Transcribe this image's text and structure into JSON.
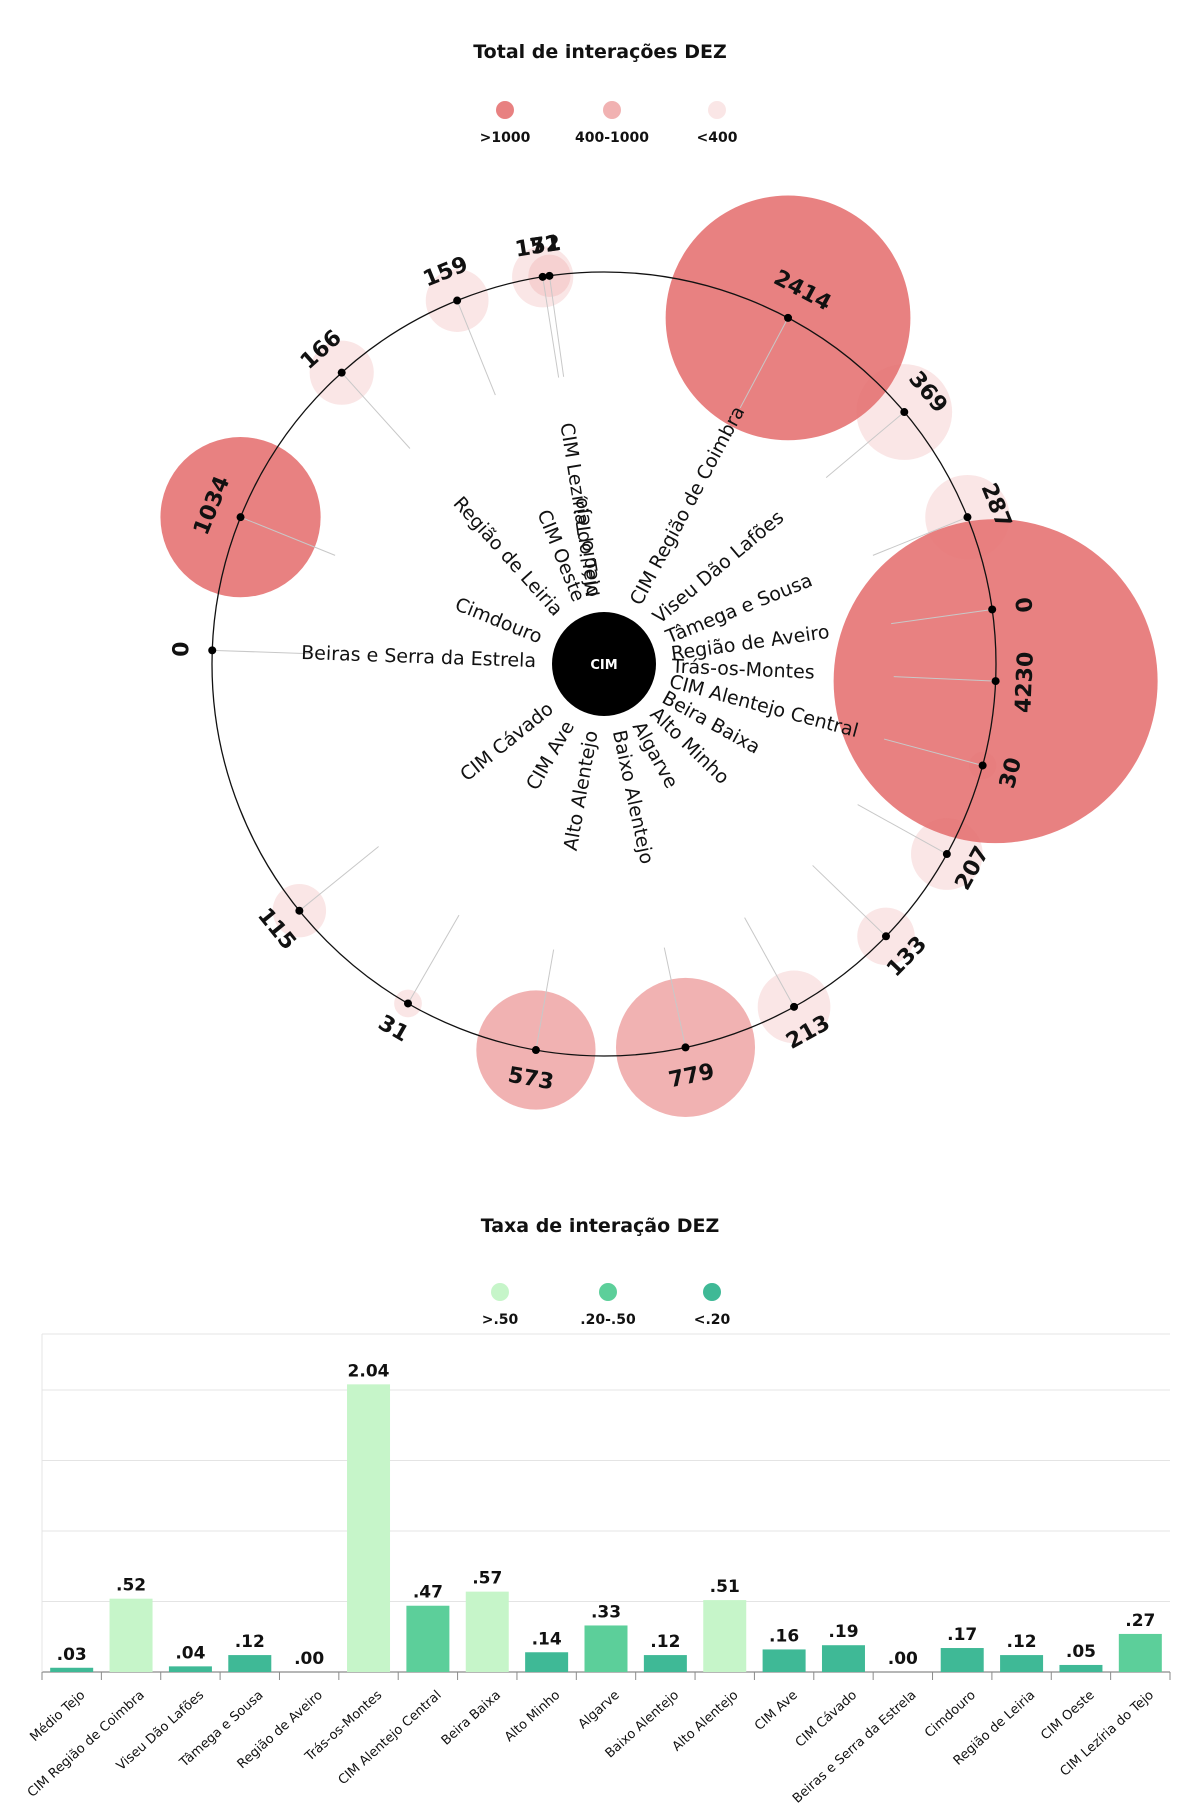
{
  "chart_data": [
    {
      "type": "radial-bubble",
      "title": "Total de interações DEZ",
      "center_label": "CIM",
      "legend": [
        {
          "label": ">1000",
          "color": "#e57373",
          "opacity": 0.9
        },
        {
          "label": "400-1000",
          "color": "#e57373",
          "opacity": 0.55
        },
        {
          "label": "<400",
          "color": "#e57373",
          "opacity": 0.18
        }
      ],
      "categories": [
        "Médio Tejo",
        "CIM Região de Coimbra",
        "Viseu Dão Lafões",
        "Tâmega e Sousa",
        "Região de Aveiro",
        "Trás-os-Montes",
        "CIM Alentejo Central",
        "Beira Baixa",
        "Alto Minho",
        "Algarve",
        "Baixo Alentejo",
        "Alto Alentejo",
        "CIM Ave",
        "CIM Cávado",
        "Beiras e Serra da Estrela",
        "Cimdouro",
        "Região de Leiria",
        "CIM Oeste",
        "CIM Lezíria do Tejo"
      ],
      "values": [
        72,
        2414,
        369,
        287,
        0,
        4230,
        30,
        207,
        133,
        213,
        779,
        573,
        31,
        115,
        0,
        1034,
        166,
        159,
        151
      ],
      "value_labels": [
        "72",
        "2414",
        "369",
        "287",
        "0",
        "4230",
        "30",
        "207",
        "133",
        "213",
        "779",
        "573",
        "31",
        "115",
        "0",
        "1034",
        "166",
        "159",
        "151"
      ]
    },
    {
      "type": "bar",
      "title": "Taxa de interação DEZ",
      "legend": [
        {
          "label": ">.50",
          "color": "#c6f5c9"
        },
        {
          "label": ".20-.50",
          "color": "#5ccf9a"
        },
        {
          "label": "<.20",
          "color": "#3fb996"
        }
      ],
      "categories": [
        "Médio Tejo",
        "CIM Região de Coimbra",
        "Viseu Dão Lafões",
        "Tâmega e Sousa",
        "Região de Aveiro",
        "Trás-os-Montes",
        "CIM Alentejo Central",
        "Beira Baixa",
        "Alto Minho",
        "Algarve",
        "Baixo Alentejo",
        "Alto Alentejo",
        "CIM Ave",
        "CIM Cávado",
        "Beiras e Serra da Estrela",
        "Cimdouro",
        "Região de Leiria",
        "CIM Oeste",
        "CIM Lezíria do Tejo"
      ],
      "values": [
        0.03,
        0.52,
        0.04,
        0.12,
        0.0,
        2.04,
        0.47,
        0.57,
        0.14,
        0.33,
        0.12,
        0.51,
        0.16,
        0.19,
        0.0,
        0.17,
        0.12,
        0.05,
        0.27
      ],
      "value_labels": [
        ".03",
        ".52",
        ".04",
        ".12",
        ".00",
        "2.04",
        ".47",
        ".57",
        ".14",
        ".33",
        ".12",
        ".51",
        ".16",
        ".19",
        ".00",
        ".17",
        ".12",
        ".05",
        ".27"
      ],
      "ylim": [
        0,
        2.0
      ],
      "grid": true
    }
  ]
}
